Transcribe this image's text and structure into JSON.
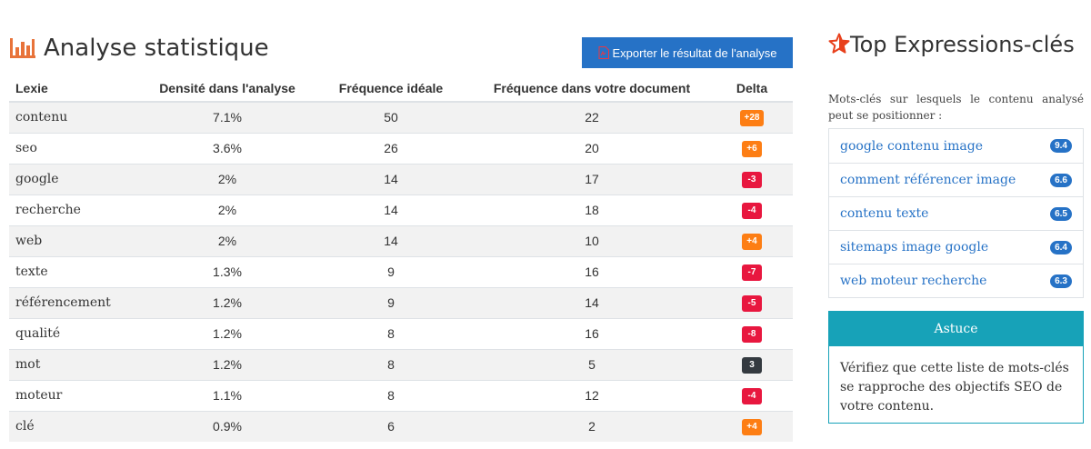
{
  "main": {
    "title": "Analyse statistique",
    "export_label": "Exporter le résultat de l'analyse",
    "columns": [
      "Lexie",
      "Densité dans l'analyse",
      "Fréquence idéale",
      "Fréquence dans votre document",
      "Delta"
    ],
    "rows": [
      {
        "lexie": "contenu",
        "density": "7.1%",
        "ideal": "50",
        "doc": "22",
        "delta": "+28",
        "color": "#fd7e14"
      },
      {
        "lexie": "seo",
        "density": "3.6%",
        "ideal": "26",
        "doc": "20",
        "delta": "+6",
        "color": "#fd7e14"
      },
      {
        "lexie": "google",
        "density": "2%",
        "ideal": "14",
        "doc": "17",
        "delta": "-3",
        "color": "#e8173f"
      },
      {
        "lexie": "recherche",
        "density": "2%",
        "ideal": "14",
        "doc": "18",
        "delta": "-4",
        "color": "#e8173f"
      },
      {
        "lexie": "web",
        "density": "2%",
        "ideal": "14",
        "doc": "10",
        "delta": "+4",
        "color": "#fd7e14"
      },
      {
        "lexie": "texte",
        "density": "1.3%",
        "ideal": "9",
        "doc": "16",
        "delta": "-7",
        "color": "#e8173f"
      },
      {
        "lexie": "référencement",
        "density": "1.2%",
        "ideal": "9",
        "doc": "14",
        "delta": "-5",
        "color": "#e8173f"
      },
      {
        "lexie": "qualité",
        "density": "1.2%",
        "ideal": "8",
        "doc": "16",
        "delta": "-8",
        "color": "#e8173f"
      },
      {
        "lexie": "mot",
        "density": "1.2%",
        "ideal": "8",
        "doc": "5",
        "delta": "3",
        "color": "#343a40"
      },
      {
        "lexie": "moteur",
        "density": "1.1%",
        "ideal": "8",
        "doc": "12",
        "delta": "-4",
        "color": "#e8173f"
      },
      {
        "lexie": "clé",
        "density": "0.9%",
        "ideal": "6",
        "doc": "2",
        "delta": "+4",
        "color": "#fd7e14"
      }
    ]
  },
  "side": {
    "title": "Top Expressions-clés",
    "description": "Mots-clés sur lesquels le contenu analysé peut se positionner :",
    "keywords": [
      {
        "label": "google contenu image",
        "score": "9.4"
      },
      {
        "label": "comment référencer image",
        "score": "6.6"
      },
      {
        "label": "contenu texte",
        "score": "6.5"
      },
      {
        "label": "sitemaps image google",
        "score": "6.4"
      },
      {
        "label": "web moteur recherche",
        "score": "6.3"
      }
    ],
    "tip": {
      "title": "Astuce",
      "body": "Vérifiez que cette liste de mots-clés se rapproche des objectifs SEO de votre contenu."
    }
  },
  "colors": {
    "accent": "#2672c6",
    "chart_icon": "#e8733a",
    "tip": "#17a2b8",
    "positive": "#fd7e14",
    "negative": "#e8173f",
    "neutral": "#343a40"
  }
}
